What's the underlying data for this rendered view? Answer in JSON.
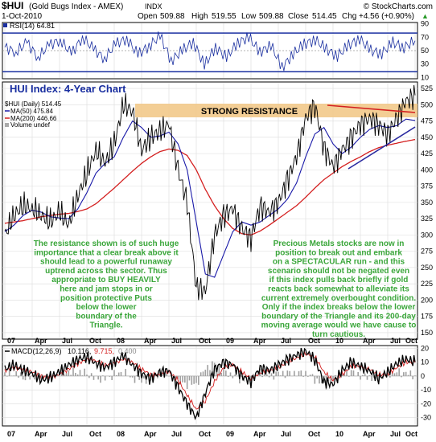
{
  "header": {
    "title": "$HUI",
    "subtitle": "(Gold Bugs Index - AMEX)",
    "exchange": "INDX",
    "copyright": "© StockCharts.com",
    "date": "1-Oct-2010",
    "open_label": "Open",
    "open": "509.88",
    "high_label": "High",
    "high": "519.55",
    "low_label": "Low",
    "low": "509.88",
    "close_label": "Close",
    "close": "514.45",
    "chg_label": "Chg",
    "chg": "+4.56 (+0.90%)",
    "chg_arrow": "▲"
  },
  "colors": {
    "price": "#000000",
    "ma50": "#1a1aa8",
    "ma200": "#d42020",
    "resistance_band": "#f2c98a",
    "annotation_text": "#3aa63a",
    "title_text": "#1a2fa0",
    "rsi_band": "#1a2fa0",
    "macd_hist": "#9a9a9a",
    "grid": "#c8c8c8"
  },
  "chart_title": "HUI Index: 4-Year Chart",
  "resistance_label": "STRONG RESISTANCE",
  "annotations": {
    "left": [
      "The resistance shown is of such huge",
      "importance that a clear break above it",
      "should lead to a powerful runaway",
      "uptrend across the sector. Thus",
      "appropriate to BUY HEAVILY",
      "here and jam stops in or",
      "position protective Puts",
      "below the lower",
      "boundary of the",
      "Triangle."
    ],
    "right": [
      "Precious Metals stocks are now in",
      "position to break out and embark",
      "on a SPECTACULAR run - and this",
      "scenario should not be negated even",
      "if this index pulls back briefly if gold",
      "reacts back somewhat to alleviate its",
      "current extremely overbought condition.",
      "Only if the index breaks below the lower",
      "boundary of the Triangle and its 200-day",
      "moving average would we have cause to",
      "turn cautious."
    ]
  },
  "rsi_panel": {
    "legend": "RSI(14) 64.81",
    "ticks": [
      "90",
      "70",
      "50",
      "30",
      "10"
    ]
  },
  "price_legend": {
    "hui": "$HUI (Daily) 514.45",
    "ma50": "MA(50) 475.84",
    "ma200": "MA(200) 446.66",
    "volume": "Volume undef"
  },
  "macd_panel": {
    "legend_prefix": "MACD(12,26,9)",
    "macd_value": "10.116,",
    "signal_value": "9.715,",
    "hist_value": "0.400",
    "ticks": [
      "20",
      "10",
      "0",
      "-10",
      "-20",
      "-30"
    ]
  },
  "x_labels": [
    "07",
    "Apr",
    "Jul",
    "Oct",
    "08",
    "Apr",
    "Jul",
    "Oct",
    "09",
    "Apr",
    "Jul",
    "Oct",
    "10",
    "Apr",
    "Jul",
    "Oct"
  ],
  "chart_data": [
    {
      "type": "line",
      "name": "RSI",
      "ylim": [
        10,
        90
      ],
      "ticks": [
        10,
        30,
        50,
        70,
        90
      ],
      "series": [
        {
          "name": "RSI(14)",
          "values": [
            55,
            48,
            62,
            40,
            58,
            66,
            45,
            70,
            52,
            38,
            60,
            68,
            44,
            57,
            72,
            35,
            50,
            63,
            28,
            55,
            40,
            62,
            70,
            48,
            58,
            25,
            45,
            60,
            66,
            52,
            42,
            58,
            68,
            50,
            46,
            62,
            55,
            64.81
          ]
        }
      ]
    },
    {
      "type": "line",
      "name": "HUI price",
      "x": [
        "2007-01",
        "2007-02",
        "2007-03",
        "2007-04",
        "2007-05",
        "2007-06",
        "2007-07",
        "2007-08",
        "2007-09",
        "2007-10",
        "2007-11",
        "2007-12",
        "2008-01",
        "2008-02",
        "2008-03",
        "2008-04",
        "2008-05",
        "2008-06",
        "2008-07",
        "2008-08",
        "2008-09",
        "2008-10",
        "2008-11",
        "2008-12",
        "2009-01",
        "2009-02",
        "2009-03",
        "2009-04",
        "2009-05",
        "2009-06",
        "2009-07",
        "2009-08",
        "2009-09",
        "2009-10",
        "2009-11",
        "2009-12",
        "2010-01",
        "2010-02",
        "2010-03",
        "2010-04",
        "2010-05",
        "2010-06",
        "2010-07",
        "2010-08",
        "2010-09",
        "2010-10"
      ],
      "ylim": [
        150,
        525
      ],
      "ticks": [
        150,
        175,
        200,
        225,
        250,
        275,
        300,
        325,
        350,
        375,
        400,
        425,
        450,
        475,
        500,
        525
      ],
      "series": [
        {
          "name": "$HUI",
          "values": [
            300,
            330,
            345,
            340,
            330,
            320,
            335,
            315,
            360,
            395,
            430,
            410,
            440,
            500,
            490,
            430,
            450,
            460,
            470,
            400,
            350,
            220,
            215,
            300,
            330,
            340,
            310,
            295,
            345,
            335,
            350,
            385,
            420,
            480,
            500,
            435,
            405,
            430,
            450,
            470,
            480,
            470,
            455,
            480,
            505,
            514.45
          ]
        },
        {
          "name": "MA(50)",
          "values": [
            305,
            315,
            330,
            338,
            335,
            328,
            326,
            325,
            340,
            365,
            395,
            410,
            420,
            450,
            475,
            465,
            450,
            452,
            458,
            440,
            400,
            320,
            240,
            235,
            270,
            305,
            320,
            315,
            320,
            330,
            340,
            355,
            380,
            420,
            455,
            465,
            440,
            425,
            435,
            450,
            462,
            468,
            465,
            468,
            478,
            475.84
          ]
        },
        {
          "name": "MA(200)",
          "values": [
            318,
            320,
            322,
            325,
            328,
            330,
            332,
            333,
            336,
            340,
            348,
            360,
            372,
            385,
            398,
            410,
            420,
            428,
            432,
            430,
            422,
            400,
            370,
            345,
            325,
            310,
            302,
            300,
            306,
            315,
            325,
            335,
            345,
            358,
            372,
            385,
            395,
            405,
            413,
            420,
            428,
            434,
            438,
            441,
            444,
            446.66
          ]
        }
      ]
    },
    {
      "type": "line",
      "name": "MACD",
      "ylim": [
        -30,
        20
      ],
      "ticks": [
        -30,
        -20,
        -10,
        0,
        10,
        20
      ],
      "series": [
        {
          "name": "MACD(12,26,9)",
          "values": [
            5,
            8,
            4,
            2,
            -3,
            -1,
            3,
            8,
            12,
            14,
            9,
            6,
            10,
            15,
            8,
            2,
            -2,
            3,
            4,
            -8,
            -20,
            -30,
            -12,
            5,
            10,
            8,
            0,
            -4,
            6,
            4,
            8,
            12,
            15,
            18,
            12,
            -4,
            -6,
            4,
            10,
            7,
            4,
            -2,
            3,
            9,
            12,
            10.116
          ]
        },
        {
          "name": "Signal",
          "values": [
            4,
            6,
            5,
            3,
            0,
            -1,
            1,
            5,
            9,
            12,
            11,
            8,
            9,
            12,
            10,
            5,
            1,
            1,
            3,
            -3,
            -14,
            -24,
            -18,
            -4,
            6,
            8,
            3,
            -2,
            2,
            4,
            6,
            10,
            13,
            16,
            14,
            3,
            -3,
            1,
            7,
            7,
            5,
            1,
            1,
            6,
            10,
            9.715
          ]
        }
      ]
    }
  ]
}
